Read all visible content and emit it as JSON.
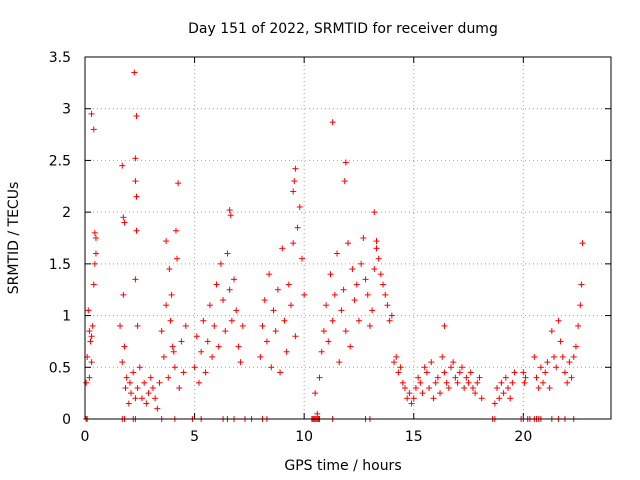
{
  "chart_data": {
    "type": "scatter",
    "title": "Day 151 of 2022, SRMTID for receiver dumg",
    "xlabel": "GPS time / hours",
    "ylabel": "SRMTID / TECUs",
    "xlim": [
      0,
      24
    ],
    "ylim": [
      0,
      3.5
    ],
    "xticks": [
      0,
      5,
      10,
      15,
      20
    ],
    "xtick_labels": [
      "0",
      "5",
      "10",
      "15",
      "20"
    ],
    "yticks": [
      0,
      0.5,
      1,
      1.5,
      2,
      2.5,
      3,
      3.5
    ],
    "ytick_labels": [
      "0",
      "0.5",
      "1",
      "1.5",
      "2",
      "2.5",
      "3",
      "3.5"
    ],
    "grid": true,
    "marker": "+",
    "color": "#ff0000",
    "series": [
      {
        "name": "SRMTID",
        "x": [
          0.05,
          0.1,
          0.15,
          0.2,
          0.25,
          0.3,
          0.35,
          0.4,
          0.45,
          0.5,
          0.45,
          0.5,
          0.4,
          0.3,
          0.3,
          0.2,
          1.6,
          1.7,
          1.8,
          1.75,
          1.9,
          1.85,
          2.0,
          2.05,
          2.1,
          2.2,
          2.3,
          2.25,
          2.35,
          2.4,
          2.5,
          2.6,
          2.7,
          2.8,
          2.9,
          3.0,
          3.1,
          3.2,
          3.3,
          3.4,
          2.3,
          2.3,
          2.35,
          2.35,
          2.3,
          2.4,
          1.7,
          1.75,
          1.8,
          3.5,
          3.6,
          3.7,
          3.8,
          3.9,
          4.0,
          4.1,
          4.2,
          4.3,
          4.4,
          4.5,
          4.6,
          4.15,
          4.25,
          3.7,
          3.85,
          3.95,
          4.05,
          5.0,
          5.1,
          5.2,
          5.3,
          5.4,
          5.5,
          5.6,
          5.7,
          5.8,
          5.9,
          6.0,
          6.1,
          6.2,
          6.3,
          6.4,
          6.5,
          6.6,
          6.7,
          6.8,
          6.9,
          7.0,
          7.1,
          7.2,
          6.6,
          6.65,
          8.0,
          8.1,
          8.2,
          8.3,
          8.4,
          8.5,
          8.6,
          8.7,
          8.8,
          8.9,
          9.0,
          9.1,
          9.2,
          9.3,
          9.4,
          9.5,
          9.6,
          9.7,
          9.8,
          9.9,
          10.0,
          9.5,
          9.55,
          9.6,
          10.5,
          10.6,
          10.7,
          10.8,
          10.9,
          11.0,
          11.1,
          11.2,
          11.3,
          11.4,
          11.5,
          11.6,
          11.7,
          11.8,
          11.9,
          12.0,
          12.1,
          12.2,
          12.3,
          12.4,
          12.5,
          12.6,
          12.7,
          12.8,
          12.9,
          13.0,
          13.1,
          13.2,
          13.3,
          13.4,
          13.5,
          13.6,
          13.7,
          13.8,
          13.9,
          14.0,
          11.3,
          11.9,
          11.85,
          13.2,
          13.3,
          14.1,
          14.2,
          14.3,
          14.4,
          14.5,
          14.6,
          14.7,
          14.8,
          14.9,
          15.0,
          15.1,
          15.2,
          15.3,
          15.4,
          15.5,
          15.6,
          15.7,
          15.8,
          15.9,
          16.0,
          16.1,
          16.2,
          16.3,
          16.4,
          16.5,
          16.6,
          16.7,
          16.8,
          16.9,
          17.0,
          17.1,
          17.2,
          17.3,
          17.4,
          17.5,
          17.6,
          17.7,
          17.8,
          17.9,
          18.0,
          18.1,
          16.4,
          18.7,
          18.8,
          18.9,
          19.0,
          19.1,
          19.2,
          19.3,
          19.4,
          19.5,
          19.6,
          20.0,
          20.05,
          20.1,
          20.5,
          20.6,
          20.7,
          20.8,
          20.9,
          21.0,
          21.1,
          21.2,
          21.3,
          21.4,
          21.5,
          21.6,
          21.7,
          21.8,
          21.9,
          22.0,
          22.1,
          22.2,
          22.3,
          22.4,
          22.5,
          22.6,
          22.65,
          22.7,
          0.05,
          0.1,
          1.7,
          1.8,
          2.2,
          2.3,
          3.5,
          4.1,
          4.9,
          5.3,
          6.3,
          6.5,
          6.8,
          7.3,
          7.6,
          8.1,
          8.3,
          10.35,
          10.4,
          10.45,
          10.5,
          10.55,
          10.6,
          10.65,
          10.7,
          11.3,
          12.8,
          13.0,
          18.6,
          18.7,
          19.9,
          20.0,
          20.2,
          20.3,
          20.5,
          20.6,
          20.7,
          20.8,
          21.3,
          21.6,
          21.9,
          22.3
        ],
        "y": [
          0.35,
          0.6,
          1.05,
          0.85,
          0.75,
          0.55,
          0.9,
          1.3,
          1.5,
          1.6,
          1.8,
          1.75,
          2.8,
          2.95,
          0.8,
          0.4,
          0.9,
          0.55,
          0.7,
          1.2,
          0.4,
          0.3,
          0.15,
          0.35,
          0.25,
          0.45,
          0.2,
          3.35,
          2.93,
          0.3,
          0.5,
          0.2,
          0.35,
          0.15,
          0.25,
          0.4,
          0.3,
          0.2,
          0.1,
          0.35,
          2.52,
          2.3,
          2.15,
          1.82,
          1.35,
          0.9,
          2.45,
          1.95,
          1.9,
          0.85,
          0.6,
          1.1,
          0.4,
          0.95,
          0.7,
          0.5,
          1.55,
          0.3,
          0.75,
          0.45,
          0.9,
          1.82,
          2.28,
          1.72,
          1.45,
          1.2,
          0.65,
          0.5,
          0.8,
          0.35,
          0.65,
          0.95,
          0.45,
          0.75,
          1.1,
          0.6,
          0.9,
          1.3,
          0.7,
          1.5,
          1.15,
          0.85,
          1.6,
          1.25,
          0.95,
          1.35,
          1.05,
          0.7,
          0.55,
          0.9,
          2.02,
          1.97,
          0.6,
          0.9,
          1.15,
          0.75,
          1.4,
          0.5,
          1.05,
          0.85,
          1.25,
          0.45,
          1.65,
          0.95,
          0.65,
          1.3,
          1.1,
          1.7,
          0.8,
          1.85,
          2.05,
          1.55,
          1.2,
          2.2,
          2.3,
          2.42,
          0.25,
          0.05,
          0.4,
          0.65,
          0.85,
          1.1,
          0.75,
          1.4,
          0.95,
          1.2,
          1.6,
          0.55,
          1.05,
          1.25,
          0.85,
          1.7,
          0.7,
          1.45,
          1.15,
          1.3,
          0.95,
          1.5,
          1.75,
          1.35,
          1.2,
          0.9,
          1.05,
          1.45,
          1.65,
          1.55,
          1.4,
          1.3,
          1.2,
          1.1,
          0.95,
          1.0,
          2.87,
          2.48,
          2.3,
          2.0,
          1.72,
          0.55,
          0.6,
          0.45,
          0.5,
          0.35,
          0.3,
          0.2,
          0.25,
          0.15,
          0.2,
          0.3,
          0.4,
          0.35,
          0.25,
          0.5,
          0.45,
          0.3,
          0.55,
          0.2,
          0.35,
          0.4,
          0.25,
          0.6,
          0.45,
          0.35,
          0.3,
          0.5,
          0.55,
          0.4,
          0.35,
          0.45,
          0.5,
          0.3,
          0.4,
          0.35,
          0.45,
          0.3,
          0.25,
          0.35,
          0.4,
          0.2,
          0.9,
          0.15,
          0.3,
          0.2,
          0.35,
          0.25,
          0.4,
          0.3,
          0.2,
          0.35,
          0.45,
          0.45,
          0.35,
          0.4,
          0.6,
          0.4,
          0.3,
          0.5,
          0.35,
          0.45,
          0.55,
          0.3,
          0.85,
          0.6,
          0.5,
          0.95,
          0.75,
          0.6,
          0.45,
          0.35,
          0.55,
          0.4,
          0.6,
          0.7,
          0.9,
          1.1,
          1.3,
          1.7,
          0.0,
          0.0,
          0.0,
          0.0,
          0.0,
          0.0,
          0.0,
          0.0,
          0.0,
          0.0,
          0.0,
          0.0,
          0.0,
          0.0,
          0.0,
          0.0,
          0.0,
          0.0,
          0.0,
          0.0,
          0.0,
          0.0,
          0.0,
          0.0,
          0.0,
          0.0,
          0.0,
          0.0,
          0.0,
          0.0,
          0.0,
          0.0,
          0.0,
          0.0,
          0.0,
          0.0,
          0.0,
          0.0,
          0.0,
          0.0,
          0.0,
          0.0
        ]
      }
    ]
  }
}
